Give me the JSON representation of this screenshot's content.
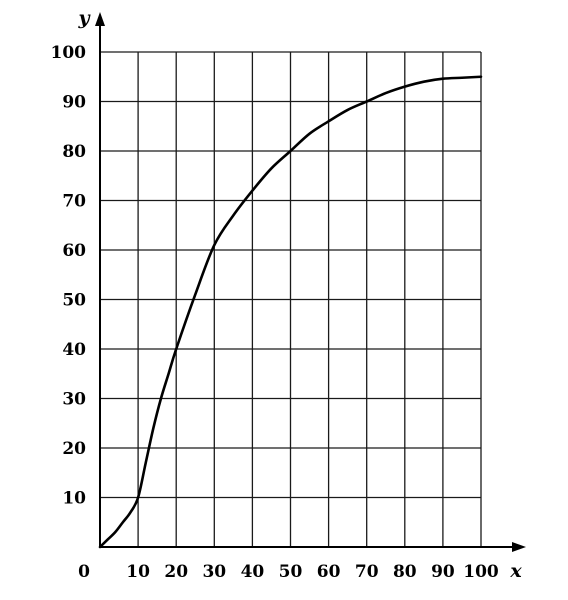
{
  "chart_data": {
    "type": "line",
    "xlabel": "x",
    "ylabel": "y",
    "origin_label": "0",
    "xlim": [
      0,
      100
    ],
    "ylim": [
      0,
      100
    ],
    "grid": true,
    "x_ticks": [
      "10",
      "20",
      "30",
      "40",
      "50",
      "60",
      "70",
      "80",
      "90",
      "100"
    ],
    "y_ticks": [
      "10",
      "20",
      "30",
      "40",
      "50",
      "60",
      "70",
      "80",
      "90",
      "100"
    ],
    "series": [
      {
        "x": [
          0,
          2,
          4,
          6,
          8,
          10,
          12,
          14,
          16,
          18,
          20,
          25,
          30,
          35,
          40,
          45,
          50,
          55,
          60,
          65,
          70,
          75,
          80,
          85,
          90,
          95,
          100
        ],
        "y": [
          0,
          1.5,
          3,
          5,
          7,
          10,
          17,
          24,
          30,
          35,
          40,
          51,
          61,
          67,
          72,
          76.5,
          80,
          83.5,
          86,
          88.3,
          90,
          91.7,
          93,
          94,
          94.6,
          94.8,
          95
        ]
      }
    ],
    "colors": {
      "line": "#000000",
      "grid": "#1a1a1a",
      "background": "#ffffff"
    }
  }
}
